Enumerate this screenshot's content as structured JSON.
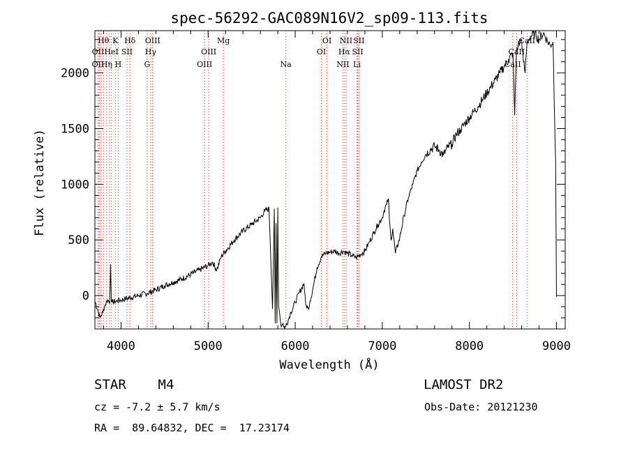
{
  "chart_data": {
    "type": "line",
    "title": "spec-56292-GAC089N16V2_sp09-113.fits",
    "xlabel": "Wavelength (Å)",
    "ylabel": "Flux (relative)",
    "xlim": [
      3700,
      9100
    ],
    "ylim": [
      -300,
      2380
    ],
    "xticks": [
      4000,
      5000,
      6000,
      7000,
      8000,
      9000
    ],
    "yticks": [
      0,
      500,
      1000,
      1500,
      2000
    ],
    "grid": false,
    "series": [
      {
        "x": [
          3700,
          3730,
          3760,
          3790,
          3810,
          3830,
          3850,
          3870,
          3880,
          3890,
          3900,
          3950,
          4000,
          4050,
          4100,
          4200,
          4300,
          4400,
          4500,
          4600,
          4700,
          4800,
          4900,
          5000,
          5050,
          5100,
          5150,
          5200,
          5300,
          5400,
          5500,
          5600,
          5650,
          5700,
          5740,
          5760,
          5770,
          5780,
          5790,
          5800,
          5810,
          5820,
          5840,
          5860,
          5880,
          5900,
          5920,
          5950,
          6000,
          6050,
          6100,
          6120,
          6150,
          6170,
          6200,
          6250,
          6300,
          6350,
          6400,
          6450,
          6500,
          6550,
          6600,
          6650,
          6700,
          6750,
          6800,
          6850,
          6900,
          6950,
          7000,
          7020,
          7050,
          7070,
          7080,
          7100,
          7120,
          7150,
          7200,
          7250,
          7300,
          7350,
          7400,
          7450,
          7500,
          7550,
          7600,
          7650,
          7700,
          7750,
          7800,
          7850,
          7900,
          7950,
          8000,
          8050,
          8100,
          8150,
          8200,
          8250,
          8300,
          8350,
          8400,
          8450,
          8500,
          8520,
          8540,
          8560,
          8580,
          8600,
          8620,
          8640,
          8660,
          8680,
          8700,
          8750,
          8800,
          8850,
          8900,
          8930,
          8960,
          8990,
          9000
        ],
        "y": [
          -50,
          -120,
          -200,
          -150,
          -100,
          -60,
          -40,
          -70,
          280,
          -60,
          -60,
          -50,
          -40,
          -30,
          -20,
          0,
          20,
          50,
          90,
          120,
          150,
          190,
          230,
          270,
          300,
          230,
          350,
          400,
          500,
          580,
          640,
          700,
          760,
          780,
          -120,
          780,
          -250,
          650,
          -250,
          790,
          -100,
          -150,
          -280,
          -250,
          -300,
          -250,
          -220,
          -150,
          -60,
          30,
          110,
          -80,
          -120,
          -50,
          50,
          250,
          350,
          380,
          390,
          400,
          380,
          400,
          380,
          360,
          340,
          370,
          400,
          480,
          560,
          640,
          700,
          760,
          820,
          870,
          700,
          500,
          600,
          380,
          520,
          720,
          880,
          1000,
          1120,
          1200,
          1270,
          1310,
          1340,
          1310,
          1260,
          1330,
          1360,
          1450,
          1490,
          1550,
          1600,
          1650,
          1700,
          1760,
          1820,
          1880,
          1940,
          2000,
          2060,
          2120,
          2180,
          1620,
          2200,
          2250,
          2270,
          2300,
          2100,
          2000,
          2260,
          2300,
          2330,
          2350,
          2300,
          2360,
          2280,
          2250,
          2280,
          1200,
          -10
        ]
      }
    ],
    "lines": [
      {
        "x": 3736,
        "labels": [
          "",
          "OII",
          "OII"
        ]
      },
      {
        "x": 3750,
        "labels": [
          "",
          "",
          ""
        ]
      },
      {
        "x": 3771,
        "labels": [
          "",
          "",
          ""
        ]
      },
      {
        "x": 3798,
        "labels": [
          "Hθ",
          "",
          ""
        ]
      },
      {
        "x": 3835,
        "labels": [
          "",
          "",
          "Hη"
        ]
      },
      {
        "x": 3869,
        "labels": [
          "",
          "",
          ""
        ]
      },
      {
        "x": 3889,
        "labels": [
          "",
          "HeI",
          ""
        ]
      },
      {
        "x": 3934,
        "labels": [
          "K",
          "",
          ""
        ]
      },
      {
        "x": 3968,
        "labels": [
          "",
          "",
          "H"
        ]
      },
      {
        "x": 4068,
        "labels": [
          "",
          "SII",
          ""
        ]
      },
      {
        "x": 4102,
        "labels": [
          "Hδ",
          "",
          ""
        ]
      },
      {
        "x": 4300,
        "labels": [
          "",
          "",
          "G"
        ]
      },
      {
        "x": 4340,
        "labels": [
          "",
          "Hγ",
          ""
        ]
      },
      {
        "x": 4363,
        "labels": [
          "OIII",
          "",
          ""
        ]
      },
      {
        "x": 4959,
        "labels": [
          "",
          "",
          "OIII"
        ]
      },
      {
        "x": 5007,
        "labels": [
          "",
          "OIII",
          ""
        ]
      },
      {
        "x": 5175,
        "labels": [
          "Mg",
          "",
          ""
        ]
      },
      {
        "x": 5893,
        "labels": [
          "",
          "",
          "Na"
        ]
      },
      {
        "x": 6300,
        "labels": [
          "",
          "OI",
          ""
        ]
      },
      {
        "x": 6364,
        "labels": [
          "OI",
          "",
          ""
        ]
      },
      {
        "x": 6548,
        "labels": [
          "",
          "",
          "NII"
        ]
      },
      {
        "x": 6563,
        "labels": [
          "",
          "Hα",
          ""
        ]
      },
      {
        "x": 6584,
        "labels": [
          "NII",
          "",
          ""
        ]
      },
      {
        "x": 6708,
        "labels": [
          "",
          "",
          "Li"
        ]
      },
      {
        "x": 6717,
        "labels": [
          "",
          "SII",
          ""
        ]
      },
      {
        "x": 6731,
        "labels": [
          "SII",
          "",
          ""
        ]
      },
      {
        "x": 8498,
        "labels": [
          "",
          "",
          "CaII"
        ]
      },
      {
        "x": 8542,
        "labels": [
          "",
          "CaII",
          ""
        ]
      },
      {
        "x": 8662,
        "labels": [
          "CaII",
          "",
          ""
        ]
      }
    ]
  },
  "info": {
    "object": "STAR    M4",
    "survey": "LAMOST DR2",
    "cz": "cz = -7.2 ± 5.7 km/s",
    "obsdate": "Obs-Date: 20121230",
    "radec": "RA =  89.64832, DEC =  17.23174"
  },
  "colors": {
    "line_marker": "#d9302b",
    "spectrum": "#000000"
  }
}
